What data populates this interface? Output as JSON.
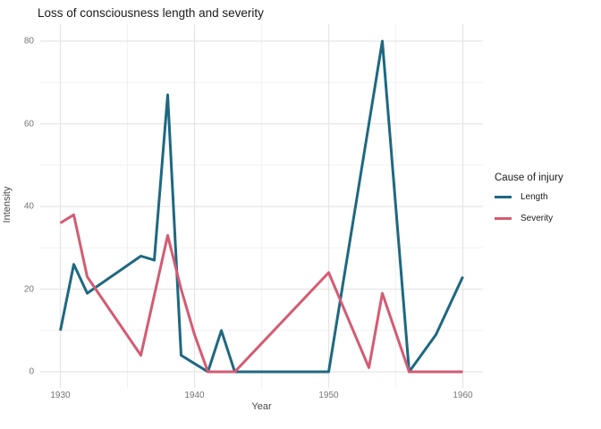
{
  "title": "Loss of consciousness length and severity",
  "x_axis": {
    "label": "Year",
    "tick_labels": [
      "1930",
      "1940",
      "1950",
      "1960"
    ]
  },
  "y_axis": {
    "label": "Intensity",
    "tick_labels": [
      "0",
      "20",
      "40",
      "60",
      "80"
    ]
  },
  "legend": {
    "title": "Cause of injury",
    "items": [
      {
        "label": "Length",
        "color": "#1e6881"
      },
      {
        "label": "Severity",
        "color": "#d45b73"
      }
    ]
  },
  "colors": {
    "background": "#ffffff",
    "grid_major": "#e5e5e5",
    "grid_minor": "#f2f2f2",
    "title_text": "#1a1a1a",
    "axis_title_text": "#4a4a4a",
    "tick_text": "#757575"
  },
  "chart_data": {
    "type": "line",
    "title": "Loss of consciousness length and severity",
    "xlabel": "Year",
    "ylabel": "Intensity",
    "xlim": [
      1928.5,
      1961.5
    ],
    "ylim": [
      -4,
      84
    ],
    "x_ticks": [
      1930,
      1940,
      1950,
      1960
    ],
    "x_minor_ticks": [
      1935,
      1945,
      1955
    ],
    "y_ticks": [
      0,
      20,
      40,
      60,
      80
    ],
    "y_minor_ticks": [
      10,
      30,
      50,
      70
    ],
    "grid": true,
    "legend_position": "right",
    "legend_title": "Cause of injury",
    "series": [
      {
        "name": "Length",
        "color": "#1e6881",
        "points": [
          [
            1930,
            10
          ],
          [
            1931,
            26
          ],
          [
            1932,
            19
          ],
          [
            1936,
            28
          ],
          [
            1937,
            27
          ],
          [
            1938,
            67
          ],
          [
            1939,
            4
          ],
          [
            1940,
            2
          ],
          [
            1941,
            0
          ],
          [
            1942,
            10
          ],
          [
            1943,
            0
          ],
          [
            1950,
            0
          ],
          [
            1954,
            80
          ],
          [
            1956,
            0
          ],
          [
            1958,
            9
          ],
          [
            1960,
            23
          ]
        ]
      },
      {
        "name": "Severity",
        "color": "#d45b73",
        "points": [
          [
            1930,
            36
          ],
          [
            1931,
            38
          ],
          [
            1932,
            23
          ],
          [
            1936,
            4
          ],
          [
            1938,
            33
          ],
          [
            1939,
            20
          ],
          [
            1940,
            9
          ],
          [
            1941,
            0
          ],
          [
            1943,
            0
          ],
          [
            1950,
            24
          ],
          [
            1953,
            1
          ],
          [
            1954,
            19
          ],
          [
            1956,
            0
          ],
          [
            1960,
            0
          ]
        ]
      }
    ]
  }
}
